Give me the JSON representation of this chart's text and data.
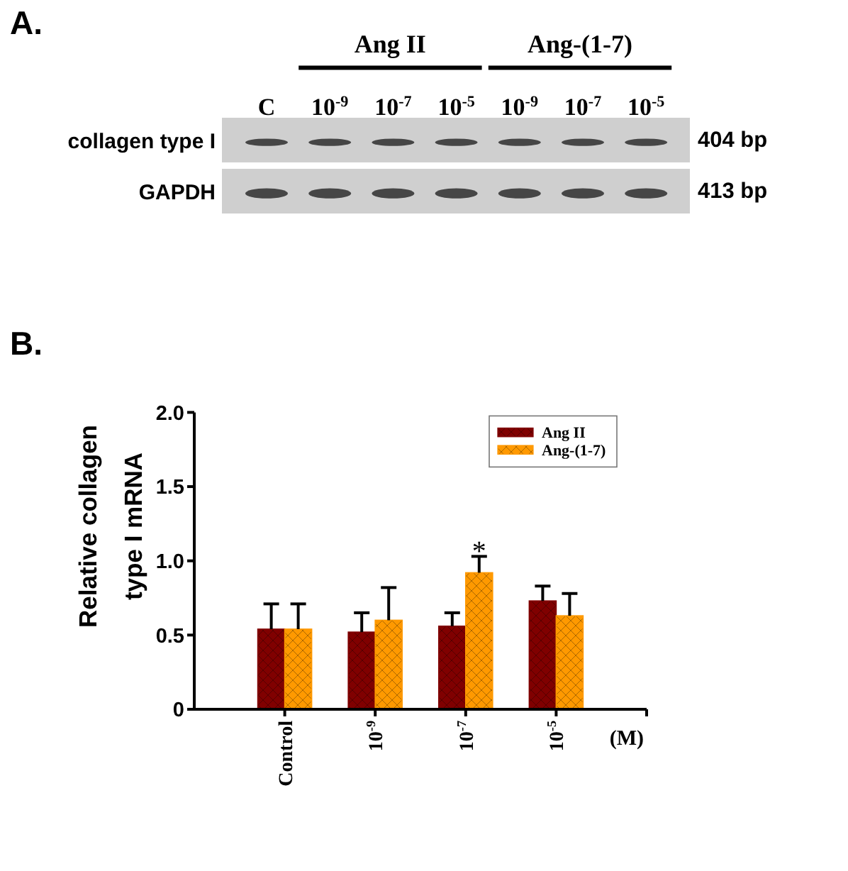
{
  "chart_data": [
    {
      "type": "other",
      "title": "A.",
      "categories": [
        "C",
        "10$^{-9}$",
        "10$^{-7}$",
        "10$^{-5}$",
        "10$^{-9}$",
        "10$^{-7}$",
        "10$^{-5}$"
      ],
      "y_categories": [
        "collagen type I",
        "GAPDH"
      ],
      "y2_categories": [
        "404 bp",
        "413 bp"
      ],
      "annotations": [
        "Ang II",
        "Ang-(1-7)"
      ]
    },
    {
      "type": "bar",
      "title": "B.",
      "categories": [
        "Control",
        "10$^{-9}$",
        "10$^{-7}$",
        "10$^{-5}$"
      ],
      "xlabel": "(M)",
      "ylabel": "Relative collagen type I mRNA",
      "ylim": [
        0,
        2
      ],
      "yticks": [
        0,
        0.5,
        {
          "value": 1,
          "label": "1.0"
        },
        1.5,
        {
          "value": 2,
          "label": "2.0"
        }
      ],
      "legend": "top right",
      "series": [
        {
          "name": "Ang II",
          "color": "#800000",
          "values": [
            0.54,
            0.52,
            0.56,
            0.73
          ],
          "errors": [
            [
              0.54,
              0.71
            ],
            [
              0.52,
              0.65
            ],
            [
              0.56,
              0.65
            ],
            [
              0.73,
              0.83
            ]
          ]
        },
        {
          "name": "Ang-(1-7)",
          "color": "#ff9900",
          "values": [
            0.54,
            0.6,
            0.92,
            0.63
          ],
          "errors": [
            [
              0.54,
              0.71
            ],
            [
              0.6,
              0.82
            ],
            [
              0.92,
              1.03
            ],
            [
              0.63,
              0.78
            ]
          ]
        }
      ],
      "annotations": [
        {
          "text": "*",
          "x": "10$^{-7}$",
          "y": 1.03
        }
      ]
    }
  ]
}
